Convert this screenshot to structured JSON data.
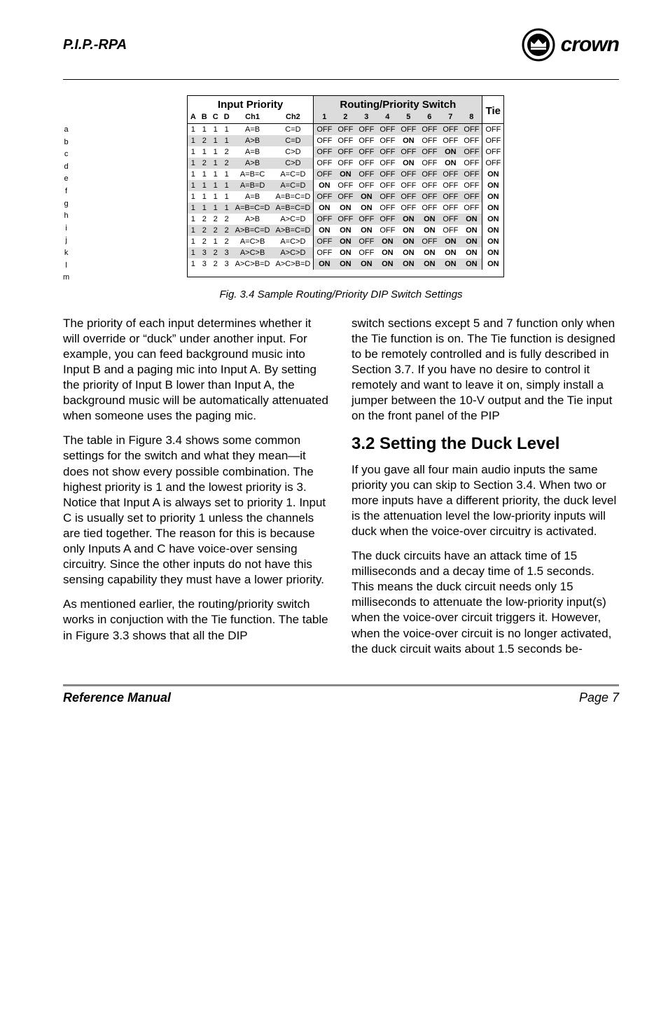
{
  "header": {
    "product": "P.I.P.-RPA",
    "brand": "crown"
  },
  "table": {
    "group_left": "Input Priority",
    "group_right": "Routing/Priority Switch",
    "group_tie": "Tie",
    "sub_left": [
      "A",
      "B",
      "C",
      "D",
      "Ch1",
      "Ch2"
    ],
    "sub_right": [
      "1",
      "2",
      "3",
      "4",
      "5",
      "6",
      "7",
      "8"
    ],
    "rows": [
      {
        "lbl": "a",
        "L": [
          "1",
          "1",
          "1",
          "1",
          "A=B",
          "C=D"
        ],
        "R": [
          "OFF",
          "OFF",
          "OFF",
          "OFF",
          "OFF",
          "OFF",
          "OFF",
          "OFF"
        ],
        "bold": [],
        "tie": "OFF",
        "shade": false
      },
      {
        "lbl": "b",
        "L": [
          "1",
          "2",
          "1",
          "1",
          "A>B",
          "C=D"
        ],
        "R": [
          "OFF",
          "OFF",
          "OFF",
          "OFF",
          "ON",
          "OFF",
          "OFF",
          "OFF"
        ],
        "bold": [
          4
        ],
        "tie": "OFF",
        "shade": true
      },
      {
        "lbl": "c",
        "L": [
          "1",
          "1",
          "1",
          "2",
          "A=B",
          "C>D"
        ],
        "R": [
          "OFF",
          "OFF",
          "OFF",
          "OFF",
          "OFF",
          "OFF",
          "ON",
          "OFF"
        ],
        "bold": [
          6
        ],
        "tie": "OFF",
        "shade": false
      },
      {
        "lbl": "d",
        "L": [
          "1",
          "2",
          "1",
          "2",
          "A>B",
          "C>D"
        ],
        "R": [
          "OFF",
          "OFF",
          "OFF",
          "OFF",
          "ON",
          "OFF",
          "ON",
          "OFF"
        ],
        "bold": [
          4,
          6
        ],
        "tie": "OFF",
        "shade": true
      },
      {
        "lbl": "e",
        "L": [
          "1",
          "1",
          "1",
          "1",
          "A=B=C",
          "A=C=D"
        ],
        "R": [
          "OFF",
          "ON",
          "OFF",
          "OFF",
          "OFF",
          "OFF",
          "OFF",
          "OFF"
        ],
        "bold": [
          1
        ],
        "tie": "ON",
        "shade": false,
        "tiebold": true
      },
      {
        "lbl": "f",
        "L": [
          "1",
          "1",
          "1",
          "1",
          "A=B=D",
          "A=C=D"
        ],
        "R": [
          "ON",
          "OFF",
          "OFF",
          "OFF",
          "OFF",
          "OFF",
          "OFF",
          "OFF"
        ],
        "bold": [
          0
        ],
        "tie": "ON",
        "shade": true,
        "tiebold": true
      },
      {
        "lbl": "g",
        "L": [
          "1",
          "1",
          "1",
          "1",
          "A=B",
          "A=B=C=D"
        ],
        "R": [
          "OFF",
          "OFF",
          "ON",
          "OFF",
          "OFF",
          "OFF",
          "OFF",
          "OFF"
        ],
        "bold": [
          2
        ],
        "tie": "ON",
        "shade": false,
        "tiebold": true
      },
      {
        "lbl": "h",
        "L": [
          "1",
          "1",
          "1",
          "1",
          "A=B=C=D",
          "A=B=C=D"
        ],
        "R": [
          "ON",
          "ON",
          "ON",
          "OFF",
          "OFF",
          "OFF",
          "OFF",
          "OFF"
        ],
        "bold": [
          0,
          1,
          2
        ],
        "tie": "ON",
        "shade": true,
        "tiebold": true
      },
      {
        "lbl": "i",
        "L": [
          "1",
          "2",
          "2",
          "2",
          "A>B",
          "A>C=D"
        ],
        "R": [
          "OFF",
          "OFF",
          "OFF",
          "OFF",
          "ON",
          "ON",
          "OFF",
          "ON"
        ],
        "bold": [
          4,
          5,
          7
        ],
        "tie": "ON",
        "shade": false,
        "tiebold": true
      },
      {
        "lbl": "j",
        "L": [
          "1",
          "2",
          "2",
          "2",
          "A>B=C=D",
          "A>B=C=D"
        ],
        "R": [
          "ON",
          "ON",
          "ON",
          "OFF",
          "ON",
          "ON",
          "OFF",
          "ON"
        ],
        "bold": [
          0,
          1,
          2,
          4,
          5,
          7
        ],
        "tie": "ON",
        "shade": true,
        "tiebold": true
      },
      {
        "lbl": "k",
        "L": [
          "1",
          "2",
          "1",
          "2",
          "A=C>B",
          "A=C>D"
        ],
        "R": [
          "OFF",
          "ON",
          "OFF",
          "ON",
          "ON",
          "OFF",
          "ON",
          "ON"
        ],
        "bold": [
          1,
          3,
          4,
          6,
          7
        ],
        "tie": "ON",
        "shade": false,
        "tiebold": true
      },
      {
        "lbl": "l",
        "L": [
          "1",
          "3",
          "2",
          "3",
          "A>C>B",
          "A>C>D"
        ],
        "R": [
          "OFF",
          "ON",
          "OFF",
          "ON",
          "ON",
          "ON",
          "ON",
          "ON"
        ],
        "bold": [
          1,
          3,
          4,
          5,
          6,
          7
        ],
        "tie": "ON",
        "shade": true,
        "tiebold": true
      },
      {
        "lbl": "m",
        "L": [
          "1",
          "3",
          "2",
          "3",
          "A>C>B=D",
          "A>C>B=D"
        ],
        "R": [
          "ON",
          "ON",
          "ON",
          "ON",
          "ON",
          "ON",
          "ON",
          "ON"
        ],
        "bold": [
          0,
          1,
          2,
          3,
          4,
          5,
          6,
          7
        ],
        "tie": "ON",
        "shade": false,
        "tiebold": true
      }
    ]
  },
  "caption": "Fig. 3.4  Sample Routing/Priority DIP Switch Settings",
  "body": {
    "left": [
      "The priority of each input determines whether it will override or “duck” under another input. For example, you can feed background music into Input B and a paging mic into Input A. By setting the priority of Input B lower than Input A, the background music will be automatically attenuated when someone uses the paging mic.",
      "The table in Figure 3.4 shows some common settings for the switch and what they mean—it does not show every possible combination. The highest priority is 1 and the lowest priority is 3. Notice that Input A is always set to priority 1. Input C is usually set to priority 1 unless the channels are tied together. The reason for this is because only Inputs A and C have voice-over sensing circuitry. Since the other inputs do not have this sensing capability they must have a lower priority.",
      "As mentioned earlier, the routing/priority switch works in conjuction with the Tie function. The table in Figure 3.3 shows that all the DIP"
    ],
    "right_intro": "switch sections except 5 and 7 function only when the Tie function is on. The Tie function is designed to be remotely controlled and is fully described in Section 3.7. If you have no desire to control it remotely and want to leave it on, simply install a jumper between the 10-V output and the Tie input on the front panel of the PIP",
    "right_h2": "3.2 Setting the Duck Level",
    "right_rest": [
      "If you gave all four main audio inputs the same priority you can skip to Section 3.4. When two or more inputs have a different priority, the duck level is the attenuation level the low-priority inputs will duck when the voice-over circuitry is activated.",
      "The duck circuits have an attack time of 15 milliseconds and a decay time of 1.5 seconds. This means the duck circuit needs only 15 milliseconds to attenuate the low-priority input(s) when the voice-over circuit triggers it. However, when the voice-over circuit is no longer activated, the duck circuit waits about 1.5 seconds be-"
    ]
  },
  "footer": {
    "left": "Reference Manual",
    "right": "Page 7"
  }
}
